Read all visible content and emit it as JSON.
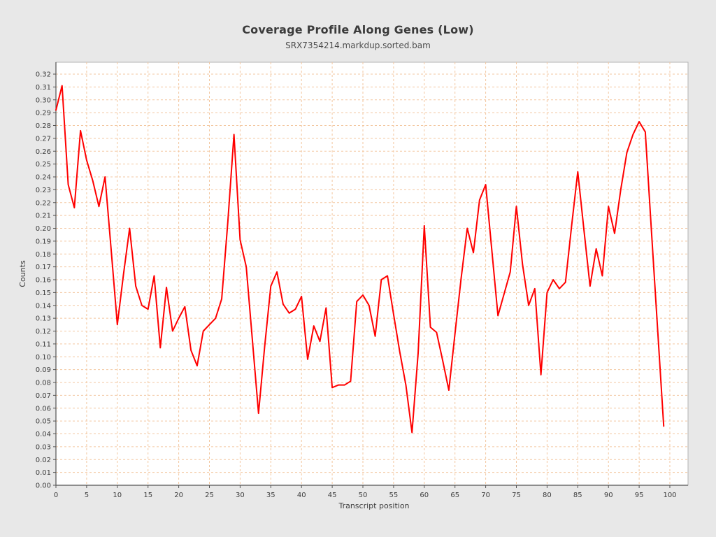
{
  "page": {
    "background": "#e8e8e8"
  },
  "header": {
    "title": "Coverage Profile Along Genes (Low)",
    "subtitle": "SRX7354214.markdup.sorted.bam"
  },
  "chart_data": {
    "type": "line",
    "title": "Coverage Profile Along Genes (Low)",
    "subtitle": "SRX7354214.markdup.sorted.bam",
    "xlabel": "Transcript position",
    "ylabel": "Counts",
    "xlim": [
      0,
      100
    ],
    "ylim": [
      0.0,
      0.32
    ],
    "x_tick_step": 5,
    "y_tick_step": 0.01,
    "x_tick_labels": [
      "0",
      "5",
      "10",
      "15",
      "20",
      "25",
      "30",
      "35",
      "40",
      "45",
      "50",
      "55",
      "60",
      "65",
      "70",
      "75",
      "80",
      "85",
      "90",
      "95",
      "100"
    ],
    "y_tick_labels": [
      "0.00",
      "0.01",
      "0.02",
      "0.03",
      "0.04",
      "0.05",
      "0.06",
      "0.07",
      "0.08",
      "0.09",
      "0.10",
      "0.11",
      "0.12",
      "0.13",
      "0.14",
      "0.15",
      "0.16",
      "0.17",
      "0.18",
      "0.19",
      "0.20",
      "0.21",
      "0.22",
      "0.23",
      "0.24",
      "0.25",
      "0.26",
      "0.27",
      "0.28",
      "0.29",
      "0.30",
      "0.31",
      "0.32"
    ],
    "grid": {
      "show": true,
      "color": "#f3c7a0",
      "style": "dashed",
      "x_interval": 5,
      "y_interval": 0.01
    },
    "legend_position": "none",
    "series": [
      {
        "name": "SRX7354214.markdup.sorted.bam",
        "color": "#ff0000",
        "x_start": 0,
        "x_step": 1,
        "values": [
          0.292,
          0.311,
          0.234,
          0.216,
          0.276,
          0.253,
          0.237,
          0.217,
          0.24,
          0.183,
          0.125,
          0.164,
          0.2,
          0.155,
          0.14,
          0.137,
          0.163,
          0.107,
          0.154,
          0.12,
          0.13,
          0.139,
          0.105,
          0.093,
          0.12,
          0.125,
          0.13,
          0.145,
          0.205,
          0.273,
          0.191,
          0.17,
          0.113,
          0.056,
          0.108,
          0.155,
          0.166,
          0.141,
          0.134,
          0.137,
          0.147,
          0.098,
          0.124,
          0.112,
          0.138,
          0.076,
          0.078,
          0.078,
          0.081,
          0.143,
          0.148,
          0.14,
          0.116,
          0.16,
          0.163,
          0.133,
          0.104,
          0.078,
          0.041,
          0.103,
          0.202,
          0.123,
          0.119,
          0.097,
          0.074,
          0.118,
          0.161,
          0.2,
          0.181,
          0.222,
          0.234,
          0.183,
          0.132,
          0.149,
          0.166,
          0.217,
          0.172,
          0.14,
          0.153,
          0.086,
          0.15,
          0.16,
          0.153,
          0.158,
          0.202,
          0.244,
          0.199,
          0.155,
          0.184,
          0.163,
          0.217,
          0.196,
          0.23,
          0.259,
          0.273,
          0.283,
          0.275,
          0.198,
          0.122,
          0.046
        ]
      }
    ],
    "colors": {
      "series": "#ff0000",
      "grid": "#f3c7a0",
      "panel_background": "#ffffff",
      "canvas_background": "#e8e8e8",
      "axis_spine": "#545454",
      "panel_border": "#b3b3b3",
      "tick_text": "#3d3d3d",
      "title_text": "#3b3b3b"
    }
  }
}
